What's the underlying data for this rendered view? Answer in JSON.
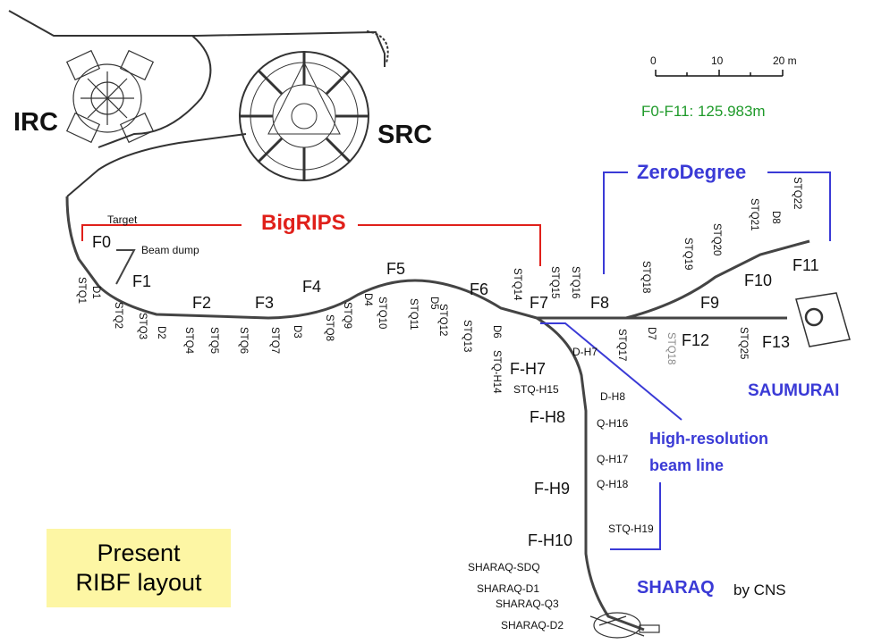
{
  "rings": {
    "irc": "IRC",
    "src": "SRC"
  },
  "scale": {
    "ticks": [
      "0",
      "10",
      "20 m"
    ],
    "length_text": "F0-F11: 125.983m"
  },
  "groups": {
    "bigrips": "BigRIPS",
    "zerodegree": "ZeroDegree",
    "saumurai": "SAUMURAI",
    "highres_1": "High-resolution",
    "highres_2": "beam line",
    "sharaq": "SHARAQ",
    "sharaq_by": "by CNS"
  },
  "focal_planes": [
    "F0",
    "F1",
    "F2",
    "F3",
    "F4",
    "F5",
    "F6",
    "F7",
    "F8",
    "F9",
    "F10",
    "F11",
    "F12",
    "F13",
    "F-H7",
    "F-H8",
    "F-H9",
    "F-H10"
  ],
  "annotations": {
    "target": "Target",
    "beam_dump": "Beam dump"
  },
  "magnets_main": [
    "STQ1",
    "D1",
    "STQ2",
    "STQ3",
    "D2",
    "STQ4",
    "STQ5",
    "STQ6",
    "STQ7",
    "D3",
    "STQ8",
    "STQ9",
    "D4",
    "STQ10",
    "STQ11",
    "D5",
    "STQ12",
    "STQ13",
    "D6",
    "STQ14",
    "STQ15",
    "STQ16",
    "STQ17",
    "STQ18",
    "D7",
    "STQ18",
    "STQ19",
    "STQ20",
    "STQ21",
    "D8",
    "STQ22",
    "STQ25",
    "STQ-H14"
  ],
  "magnets_highres": [
    "D-H7",
    "STQ-H15",
    "D-H8",
    "Q-H16",
    "Q-H17",
    "Q-H18",
    "STQ-H19"
  ],
  "magnets_sharaq": [
    "SHARAQ-SDQ",
    "SHARAQ-D1",
    "SHARAQ-Q3",
    "SHARAQ-D2"
  ],
  "title": {
    "line1": "Present",
    "line2": "RIBF layout"
  }
}
